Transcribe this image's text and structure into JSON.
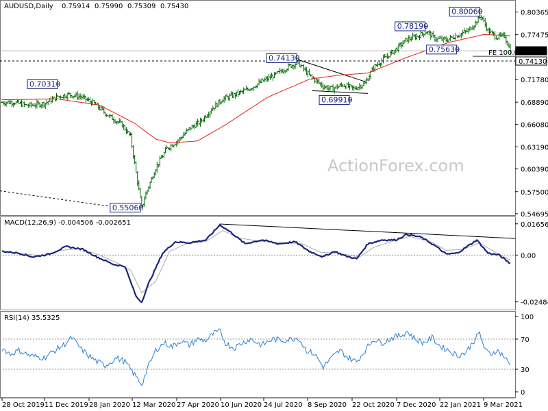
{
  "chart_data": [
    {
      "type": "ohlc",
      "title": "AUDUSD,Daily",
      "ohlc_header": [
        "0.75914",
        "0.75990",
        "0.75309",
        "0.75430"
      ],
      "yticks": [
        "0.80365",
        "0.77475",
        "0.71780",
        "0.68890",
        "0.66080",
        "0.63190",
        "0.60390",
        "0.57500",
        "0.54695"
      ],
      "ylim": [
        0.5469,
        0.8137
      ],
      "price_tags": [
        {
          "label": "0.75430",
          "value": 0.7543
        },
        {
          "label": "0.74130",
          "value": 0.7413
        }
      ],
      "fe_label": "FE 100.0",
      "annotations": [
        {
          "label": "0.70310",
          "value": 0.7031
        },
        {
          "label": "0.55060",
          "value": 0.5506
        },
        {
          "label": "0.74130",
          "value": 0.7413
        },
        {
          "label": "0.69910",
          "value": 0.6991
        },
        {
          "label": "0.78190",
          "value": 0.7819
        },
        {
          "label": "0.75630",
          "value": 0.7563
        },
        {
          "label": "0.80060",
          "value": 0.8006
        }
      ],
      "close_keypoints": [
        [
          0,
          0.6885
        ],
        [
          8,
          0.689
        ],
        [
          18,
          0.6845
        ],
        [
          30,
          0.687
        ],
        [
          40,
          0.696
        ],
        [
          48,
          0.6985
        ],
        [
          56,
          0.696
        ],
        [
          66,
          0.687
        ],
        [
          76,
          0.672
        ],
        [
          86,
          0.66
        ],
        [
          92,
          0.645
        ],
        [
          96,
          0.599
        ],
        [
          100,
          0.5545
        ],
        [
          103,
          0.5725
        ],
        [
          110,
          0.605
        ],
        [
          118,
          0.63
        ],
        [
          126,
          0.64
        ],
        [
          134,
          0.655
        ],
        [
          142,
          0.664
        ],
        [
          150,
          0.68
        ],
        [
          158,
          0.693
        ],
        [
          166,
          0.698
        ],
        [
          176,
          0.705
        ],
        [
          186,
          0.715
        ],
        [
          196,
          0.724
        ],
        [
          206,
          0.735
        ],
        [
          212,
          0.739
        ],
        [
          220,
          0.723
        ],
        [
          230,
          0.709
        ],
        [
          236,
          0.706
        ],
        [
          244,
          0.711
        ],
        [
          252,
          0.706
        ],
        [
          260,
          0.713
        ],
        [
          266,
          0.733
        ],
        [
          274,
          0.745
        ],
        [
          282,
          0.756
        ],
        [
          290,
          0.769
        ],
        [
          298,
          0.773
        ],
        [
          304,
          0.779
        ],
        [
          310,
          0.77
        ],
        [
          318,
          0.768
        ],
        [
          326,
          0.774
        ],
        [
          334,
          0.78
        ],
        [
          340,
          0.792
        ],
        [
          343,
          0.799
        ],
        [
          348,
          0.78
        ],
        [
          354,
          0.772
        ],
        [
          360,
          0.773
        ],
        [
          364,
          0.7543
        ]
      ],
      "ma_keypoints": [
        [
          0,
          0.692
        ],
        [
          40,
          0.693
        ],
        [
          70,
          0.685
        ],
        [
          95,
          0.662
        ],
        [
          110,
          0.642
        ],
        [
          120,
          0.637
        ],
        [
          140,
          0.6395
        ],
        [
          160,
          0.66
        ],
        [
          190,
          0.695
        ],
        [
          220,
          0.718
        ],
        [
          240,
          0.723
        ],
        [
          262,
          0.726
        ],
        [
          290,
          0.746
        ],
        [
          320,
          0.765
        ],
        [
          345,
          0.775
        ],
        [
          364,
          0.7735
        ]
      ],
      "x_labels": [
        "28 Oct 2019",
        "11 Dec 2019",
        "28 Jan 2020",
        "12 Mar 2020",
        "27 Apr 2020",
        "10 Jun 2020",
        "24 Jul 2020",
        "8 Sep 2020",
        "22 Oct 2020",
        "7 Dec 2020",
        "22 Jan 2021",
        "9 Mar 2021"
      ]
    },
    {
      "type": "line",
      "title": "MACD(12,26,9) -0.004506 -0.002651",
      "yticks": [
        "0.016567",
        "0.00",
        "-0.02484"
      ],
      "ylim": [
        -0.0275,
        0.0183
      ],
      "macd_keypoints": [
        [
          0,
          0.002
        ],
        [
          12,
          0.001
        ],
        [
          22,
          -0.001
        ],
        [
          34,
          0.0005
        ],
        [
          46,
          0.0045
        ],
        [
          58,
          0.003
        ],
        [
          68,
          -0.001
        ],
        [
          80,
          -0.005
        ],
        [
          88,
          -0.006
        ],
        [
          96,
          -0.022
        ],
        [
          100,
          -0.025
        ],
        [
          105,
          -0.015
        ],
        [
          115,
          0.001
        ],
        [
          124,
          0.007
        ],
        [
          134,
          0.0065
        ],
        [
          146,
          0.008
        ],
        [
          156,
          0.016
        ],
        [
          164,
          0.012
        ],
        [
          174,
          0.006
        ],
        [
          186,
          0.008
        ],
        [
          198,
          0.006
        ],
        [
          210,
          0.007
        ],
        [
          220,
          0.002
        ],
        [
          230,
          -0.001
        ],
        [
          238,
          0.002
        ],
        [
          246,
          -0.0005
        ],
        [
          254,
          -0.002
        ],
        [
          262,
          0.006
        ],
        [
          272,
          0.008
        ],
        [
          282,
          0.008
        ],
        [
          290,
          0.011
        ],
        [
          300,
          0.0095
        ],
        [
          310,
          0.005
        ],
        [
          318,
          0.0005
        ],
        [
          326,
          0.001
        ],
        [
          334,
          0.005
        ],
        [
          340,
          0.008
        ],
        [
          348,
          0.001
        ],
        [
          356,
          0.0
        ],
        [
          364,
          -0.0045
        ]
      ],
      "signal_keypoints": [
        [
          0,
          0.0022
        ],
        [
          15,
          0.0008
        ],
        [
          28,
          -0.0005
        ],
        [
          42,
          0.0025
        ],
        [
          56,
          0.0035
        ],
        [
          68,
          0.0005
        ],
        [
          82,
          -0.004
        ],
        [
          92,
          -0.008
        ],
        [
          100,
          -0.02
        ],
        [
          110,
          -0.014
        ],
        [
          120,
          0.002
        ],
        [
          132,
          0.006
        ],
        [
          146,
          0.0072
        ],
        [
          158,
          0.013
        ],
        [
          170,
          0.009
        ],
        [
          186,
          0.0072
        ],
        [
          200,
          0.0065
        ],
        [
          214,
          0.0062
        ],
        [
          228,
          0.0015
        ],
        [
          242,
          0.0008
        ],
        [
          256,
          -0.001
        ],
        [
          266,
          0.004
        ],
        [
          280,
          0.0075
        ],
        [
          292,
          0.0098
        ],
        [
          306,
          0.0075
        ],
        [
          318,
          0.0025
        ],
        [
          330,
          0.003
        ],
        [
          342,
          0.0065
        ],
        [
          352,
          0.002
        ],
        [
          364,
          -0.0027
        ]
      ]
    },
    {
      "type": "line",
      "title": "RSI(14) 35.5325",
      "yticks": [
        "100",
        "70",
        "30",
        "0"
      ],
      "ylim": [
        0,
        100
      ],
      "rsi_keypoints": [
        [
          0,
          58
        ],
        [
          6,
          50
        ],
        [
          12,
          55
        ],
        [
          20,
          48
        ],
        [
          30,
          45
        ],
        [
          38,
          55
        ],
        [
          44,
          62
        ],
        [
          50,
          72
        ],
        [
          56,
          58
        ],
        [
          62,
          48
        ],
        [
          68,
          40
        ],
        [
          74,
          35
        ],
        [
          82,
          45
        ],
        [
          88,
          40
        ],
        [
          94,
          25
        ],
        [
          98,
          15
        ],
        [
          100,
          10
        ],
        [
          104,
          30
        ],
        [
          110,
          55
        ],
        [
          116,
          65
        ],
        [
          122,
          60
        ],
        [
          128,
          68
        ],
        [
          134,
          62
        ],
        [
          140,
          70
        ],
        [
          146,
          68
        ],
        [
          152,
          78
        ],
        [
          156,
          80
        ],
        [
          160,
          65
        ],
        [
          166,
          58
        ],
        [
          172,
          65
        ],
        [
          178,
          70
        ],
        [
          186,
          62
        ],
        [
          194,
          70
        ],
        [
          202,
          68
        ],
        [
          212,
          72
        ],
        [
          218,
          55
        ],
        [
          224,
          50
        ],
        [
          230,
          33
        ],
        [
          236,
          45
        ],
        [
          242,
          55
        ],
        [
          248,
          45
        ],
        [
          254,
          40
        ],
        [
          260,
          55
        ],
        [
          266,
          70
        ],
        [
          272,
          65
        ],
        [
          280,
          72
        ],
        [
          286,
          75
        ],
        [
          290,
          80
        ],
        [
          296,
          70
        ],
        [
          302,
          65
        ],
        [
          308,
          72
        ],
        [
          314,
          60
        ],
        [
          320,
          55
        ],
        [
          326,
          48
        ],
        [
          332,
          52
        ],
        [
          338,
          68
        ],
        [
          342,
          78
        ],
        [
          346,
          55
        ],
        [
          350,
          50
        ],
        [
          354,
          55
        ],
        [
          358,
          50
        ],
        [
          364,
          35.5
        ]
      ]
    }
  ],
  "watermark": "ActionForex.com",
  "colors": {
    "bars": "#006400",
    "ma": "#e0201c",
    "macd": "#1a237e",
    "signal": "#aaaaaa",
    "rsi": "#2a7fd4",
    "annotation": "#1a237e"
  }
}
